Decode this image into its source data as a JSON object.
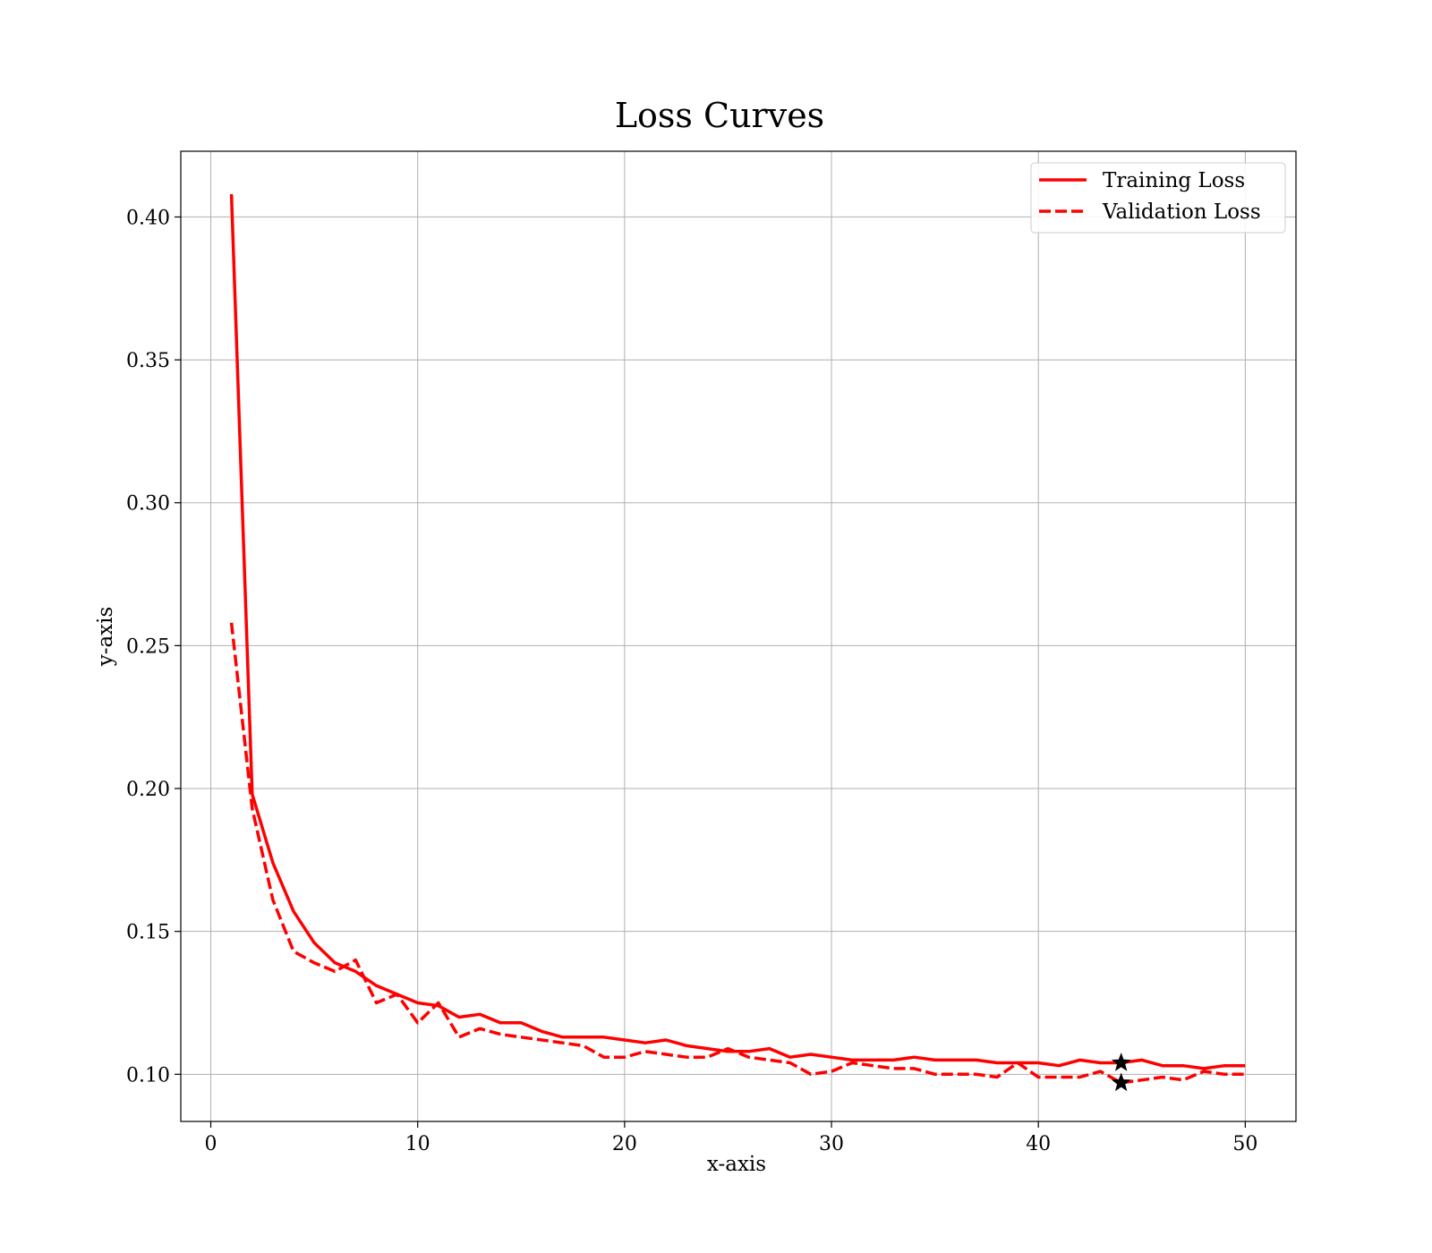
{
  "chart_data": {
    "type": "line",
    "title": "Loss Curves",
    "xlabel": "x-axis",
    "ylabel": "y-axis",
    "xlim": [
      -1.45,
      52.45
    ],
    "ylim": [
      0.0835,
      0.423
    ],
    "x_ticks": [
      0,
      10,
      20,
      30,
      40,
      50
    ],
    "x_tick_labels": [
      "0",
      "10",
      "20",
      "30",
      "40",
      "50"
    ],
    "y_ticks": [
      0.1,
      0.15,
      0.2,
      0.25,
      0.3,
      0.35,
      0.4
    ],
    "y_tick_labels": [
      "0.10",
      "0.15",
      "0.20",
      "0.25",
      "0.30",
      "0.35",
      "0.40"
    ],
    "grid": true,
    "legend_position": "top-right",
    "x": [
      1,
      2,
      3,
      4,
      5,
      6,
      7,
      8,
      9,
      10,
      11,
      12,
      13,
      14,
      15,
      16,
      17,
      18,
      19,
      20,
      21,
      22,
      23,
      24,
      25,
      26,
      27,
      28,
      29,
      30,
      31,
      32,
      33,
      34,
      35,
      36,
      37,
      38,
      39,
      40,
      41,
      42,
      43,
      44,
      45,
      46,
      47,
      48,
      49,
      50
    ],
    "series": [
      {
        "name": "Training Loss",
        "style": "solid",
        "color": "#ff0000",
        "values": [
          0.408,
          0.198,
          0.174,
          0.157,
          0.146,
          0.139,
          0.136,
          0.131,
          0.128,
          0.125,
          0.124,
          0.12,
          0.121,
          0.118,
          0.118,
          0.115,
          0.113,
          0.113,
          0.113,
          0.112,
          0.111,
          0.112,
          0.11,
          0.109,
          0.108,
          0.108,
          0.109,
          0.106,
          0.107,
          0.106,
          0.105,
          0.105,
          0.105,
          0.106,
          0.105,
          0.105,
          0.105,
          0.104,
          0.104,
          0.104,
          0.103,
          0.105,
          0.104,
          0.104,
          0.105,
          0.103,
          0.103,
          0.102,
          0.103,
          0.103
        ]
      },
      {
        "name": "Validation Loss",
        "style": "dashed",
        "color": "#ff0000",
        "values": [
          0.258,
          0.193,
          0.161,
          0.143,
          0.139,
          0.136,
          0.14,
          0.125,
          0.128,
          0.118,
          0.125,
          0.113,
          0.116,
          0.114,
          0.113,
          0.112,
          0.111,
          0.11,
          0.106,
          0.106,
          0.108,
          0.107,
          0.106,
          0.106,
          0.109,
          0.106,
          0.105,
          0.104,
          0.1,
          0.101,
          0.104,
          0.103,
          0.102,
          0.102,
          0.1,
          0.1,
          0.1,
          0.099,
          0.104,
          0.099,
          0.099,
          0.099,
          0.101,
          0.097,
          0.098,
          0.099,
          0.098,
          0.101,
          0.1,
          0.1
        ]
      }
    ],
    "markers": [
      {
        "symbol": "star",
        "color": "#000000",
        "x": 44,
        "y": 0.104
      },
      {
        "symbol": "star",
        "color": "#000000",
        "x": 44,
        "y": 0.097
      }
    ]
  }
}
